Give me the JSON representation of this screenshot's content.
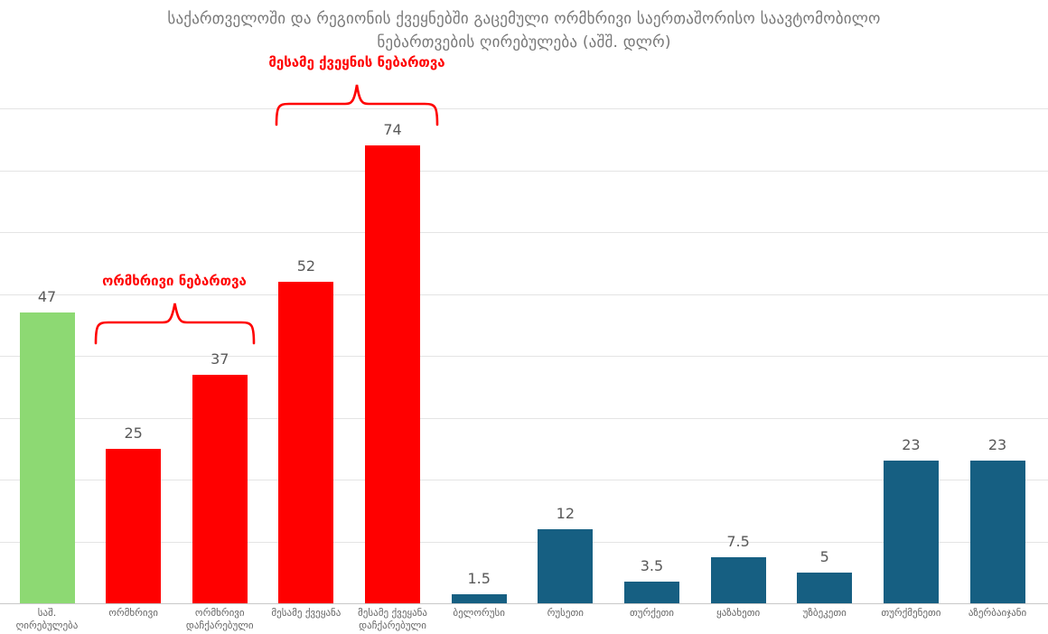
{
  "title": {
    "line1": "საქართველოში და რეგიონის ქვეყნებში გაცემული ორმხრივი საერთაშორისო საავტომობილო",
    "line2": "ნებართვების ღირებულება (აშშ. დლრ)"
  },
  "annotations": {
    "third_country_label": "მესამე ქვეყნის ნებართვა",
    "bilateral_label": "ორმხრივი ნებართვა"
  },
  "colors": {
    "green": "#8DD973",
    "red": "#FF0000",
    "teal": "#165F82",
    "annotation_red": "#FF0000",
    "gridline": "#E4E4E4",
    "axis_line": "#C9C9C9",
    "title_text": "#787878",
    "value_text": "#595959",
    "axis_text": "#666666"
  },
  "chart_data": {
    "type": "bar",
    "title": "საქართველოში და რეგიონის ქვეყნებში გაცემული ორმხრივი საერთაშორისო საავტომობილო ნებართვების ღირებულება (აშშ. დლრ)",
    "xlabel": "",
    "ylabel": "",
    "ylim": [
      0,
      80
    ],
    "grid": "horizontal",
    "grid_step": 10,
    "legend": "none",
    "categories": [
      "საშ.\nღირებულება",
      "ორმხრივი",
      "ორმხრივი\nდაჩქარებული",
      "მესამე ქვეყანა",
      "მესამე ქვეყანა\nდაჩქარებული",
      "ბელორუსი",
      "რუსეთი",
      "თურქეთი",
      "ყაზახეთი",
      "უზბეკეთი",
      "თურქმენეთი",
      "აზერბაიჯანი"
    ],
    "values": [
      47,
      25,
      37,
      52,
      74,
      1.5,
      12,
      3.5,
      7.5,
      5,
      23,
      23
    ],
    "value_labels": [
      "47",
      "25",
      "37",
      "52",
      "74",
      "1.5",
      "12",
      "3.5",
      "7.5",
      "5",
      "23",
      "23"
    ],
    "bar_colors": [
      "green",
      "red",
      "red",
      "red",
      "red",
      "teal",
      "teal",
      "teal",
      "teal",
      "teal",
      "teal",
      "teal"
    ],
    "brace_annotations": [
      {
        "text": "ორმხრივი ნებართვა",
        "applies_to": [
          "ორმხრივი",
          "ორმხრივი დაჩქარებული"
        ]
      },
      {
        "text": "მესამე ქვეყნის ნებართვა",
        "applies_to": [
          "მესამე ქვეყანა",
          "მესამე ქვეყანა დაჩქარებული"
        ]
      }
    ]
  }
}
